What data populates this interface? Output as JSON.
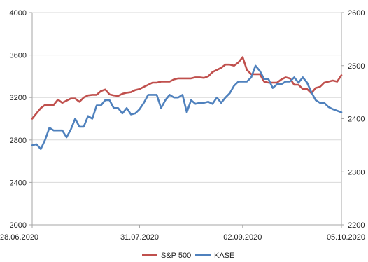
{
  "chart_data": {
    "type": "line",
    "x": [
      "28.06.2020",
      "29.06.2020",
      "30.06.2020",
      "01.07.2020",
      "02.07.2020",
      "05.07.2020",
      "06.07.2020",
      "07.07.2020",
      "08.07.2020",
      "09.07.2020",
      "12.07.2020",
      "13.07.2020",
      "14.07.2020",
      "15.07.2020",
      "16.07.2020",
      "19.07.2020",
      "20.07.2020",
      "21.07.2020",
      "22.07.2020",
      "23.07.2020",
      "26.07.2020",
      "27.07.2020",
      "28.07.2020",
      "29.07.2020",
      "30.07.2020",
      "31.07.2020",
      "02.08.2020",
      "03.08.2020",
      "04.08.2020",
      "05.08.2020",
      "06.08.2020",
      "09.08.2020",
      "10.08.2020",
      "11.08.2020",
      "12.08.2020",
      "13.08.2020",
      "16.08.2020",
      "17.08.2020",
      "18.08.2020",
      "19.08.2020",
      "20.08.2020",
      "23.08.2020",
      "24.08.2020",
      "25.08.2020",
      "26.08.2020",
      "27.08.2020",
      "30.08.2020",
      "31.08.2020",
      "01.09.2020",
      "02.09.2020",
      "03.09.2020",
      "06.09.2020",
      "07.09.2020",
      "08.09.2020",
      "09.09.2020",
      "10.09.2020",
      "13.09.2020",
      "14.09.2020",
      "15.09.2020",
      "16.09.2020",
      "17.09.2020",
      "20.09.2020",
      "21.09.2020",
      "22.09.2020",
      "23.09.2020",
      "24.09.2020",
      "27.09.2020",
      "28.09.2020",
      "29.09.2020",
      "30.09.2020",
      "01.10.2020",
      "04.10.2020",
      "05.10.2020"
    ],
    "x_tick_labels": [
      "28.06.2020",
      "31.07.2020",
      "02.09.2020",
      "05.10.2020"
    ],
    "series": [
      {
        "name": "S&P 500",
        "axis": "left",
        "color": "#c0504d",
        "values": [
          3000,
          3050,
          3100,
          3130,
          3130,
          3130,
          3180,
          3150,
          3170,
          3190,
          3190,
          3160,
          3200,
          3220,
          3225,
          3225,
          3260,
          3275,
          3230,
          3220,
          3215,
          3235,
          3245,
          3250,
          3270,
          3280,
          3300,
          3320,
          3340,
          3340,
          3350,
          3350,
          3350,
          3370,
          3380,
          3380,
          3380,
          3380,
          3390,
          3390,
          3385,
          3400,
          3440,
          3460,
          3480,
          3510,
          3510,
          3500,
          3530,
          3580,
          3460,
          3420,
          3420,
          3420,
          3350,
          3340,
          3340,
          3340,
          3370,
          3390,
          3380,
          3320,
          3320,
          3280,
          3280,
          3240,
          3290,
          3300,
          3340,
          3350,
          3360,
          3350,
          3410
        ]
      },
      {
        "name": "KASE",
        "axis": "right",
        "color": "#4f81bd",
        "values": [
          2350,
          2352,
          2343,
          2360,
          2383,
          2378,
          2378,
          2378,
          2365,
          2380,
          2400,
          2385,
          2385,
          2405,
          2400,
          2425,
          2425,
          2435,
          2435,
          2420,
          2420,
          2410,
          2420,
          2408,
          2410,
          2418,
          2430,
          2445,
          2445,
          2445,
          2420,
          2435,
          2445,
          2440,
          2440,
          2445,
          2412,
          2435,
          2428,
          2430,
          2430,
          2432,
          2428,
          2440,
          2430,
          2440,
          2448,
          2462,
          2470,
          2470,
          2470,
          2478,
          2500,
          2490,
          2475,
          2475,
          2458,
          2465,
          2465,
          2470,
          2470,
          2478,
          2468,
          2478,
          2468,
          2450,
          2435,
          2430,
          2430,
          2422,
          2418,
          2415,
          2412
        ]
      }
    ],
    "y_left": {
      "min": 2000,
      "max": 4000,
      "ticks": [
        2000,
        2400,
        2800,
        3200,
        3600,
        4000
      ]
    },
    "y_right": {
      "min": 2200,
      "max": 2600,
      "ticks": [
        2200,
        2300,
        2400,
        2500,
        2600
      ]
    },
    "title": "",
    "xlabel": "",
    "ylabel": "",
    "grid": "horizontal",
    "legend": {
      "position": "bottom",
      "entries": [
        "S&P 500",
        "KASE"
      ]
    },
    "colors": {
      "axis": "#a6a6a6",
      "grid": "#d9d9d9",
      "text": "#222222"
    }
  }
}
